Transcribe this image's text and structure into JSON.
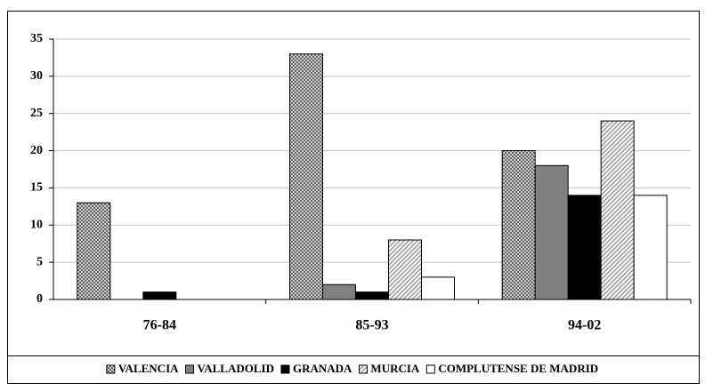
{
  "chart_data": {
    "type": "bar",
    "categories": [
      "76-84",
      "85-93",
      "94-02"
    ],
    "series": [
      {
        "name": "VALENCIA",
        "color": "#9a9a9a",
        "pattern": "crosshatch",
        "values": [
          13,
          33,
          20
        ]
      },
      {
        "name": "VALLADOLID",
        "color": "#808080",
        "values": [
          0,
          2,
          18
        ]
      },
      {
        "name": "GRANADA",
        "color": "#000000",
        "values": [
          1,
          1,
          14
        ]
      },
      {
        "name": "MURCIA",
        "color": "#c8c8c8",
        "pattern": "diagonal",
        "values": [
          0,
          8,
          24
        ]
      },
      {
        "name": "COMPLUTENSE DE MADRID",
        "color": "#ffffff",
        "values": [
          0,
          3,
          14
        ]
      }
    ],
    "ylim": [
      0,
      35
    ],
    "yticks": [
      0,
      5,
      10,
      15,
      20,
      25,
      30,
      35
    ],
    "grid": true,
    "legend": "bottom"
  }
}
